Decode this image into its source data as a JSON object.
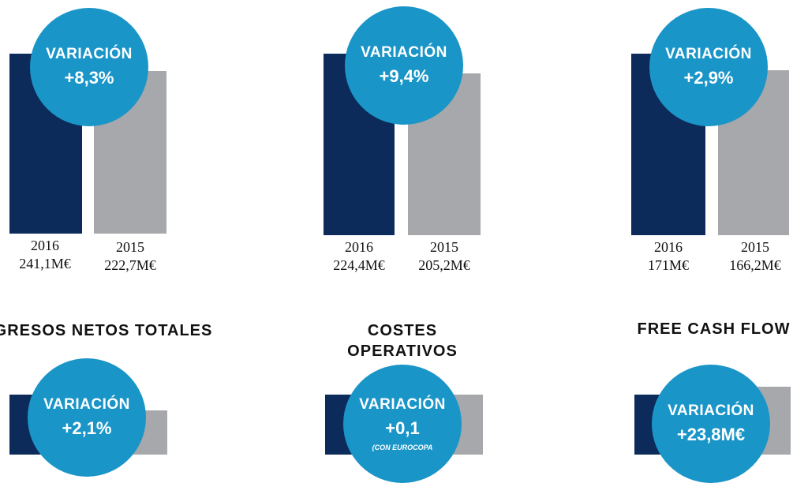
{
  "colors": {
    "dark": "#0c2b5b",
    "light": "#a6a8ab",
    "accent": "#1a95c8"
  },
  "chart_data": [
    {
      "type": "bar",
      "title": "INGRESOS NETOS TOTALES",
      "categories": [
        "2016",
        "2015"
      ],
      "values": [
        241.1,
        222.7
      ],
      "value_labels": [
        "241,1M€",
        "222,7M€"
      ],
      "badge": {
        "label": "VARIACIÓN",
        "value": "+8,3%",
        "note": ""
      }
    },
    {
      "type": "bar",
      "title": "COSTES OPERATIVOS",
      "categories": [
        "2016",
        "2015"
      ],
      "values": [
        224.4,
        205.2
      ],
      "value_labels": [
        "224,4M€",
        "205,2M€"
      ],
      "badge": {
        "label": "VARIACIÓN",
        "value": "+9,4%",
        "note": ""
      }
    },
    {
      "type": "bar",
      "title": "FREE CASH FLOW",
      "categories": [
        "2016",
        "2015"
      ],
      "values": [
        171,
        166.2
      ],
      "value_labels": [
        "171M€",
        "166,2M€"
      ],
      "badge": {
        "label": "VARIACIÓN",
        "value": "+2,9%",
        "note": ""
      }
    },
    {
      "type": "bar",
      "title": "",
      "categories": [],
      "values": [],
      "value_labels": [],
      "badge": {
        "label": "VARIACIÓN",
        "value": "+2,1%",
        "note": ""
      }
    },
    {
      "type": "bar",
      "title": "",
      "categories": [],
      "values": [],
      "value_labels": [],
      "badge": {
        "label": "VARIACIÓN",
        "value": "+0,1",
        "note": "(CON EUROCOPA"
      }
    },
    {
      "type": "bar",
      "title": "",
      "categories": [],
      "values": [],
      "value_labels": [],
      "badge": {
        "label": "VARIACIÓN",
        "value": "+23,8M€",
        "note": ""
      }
    }
  ]
}
